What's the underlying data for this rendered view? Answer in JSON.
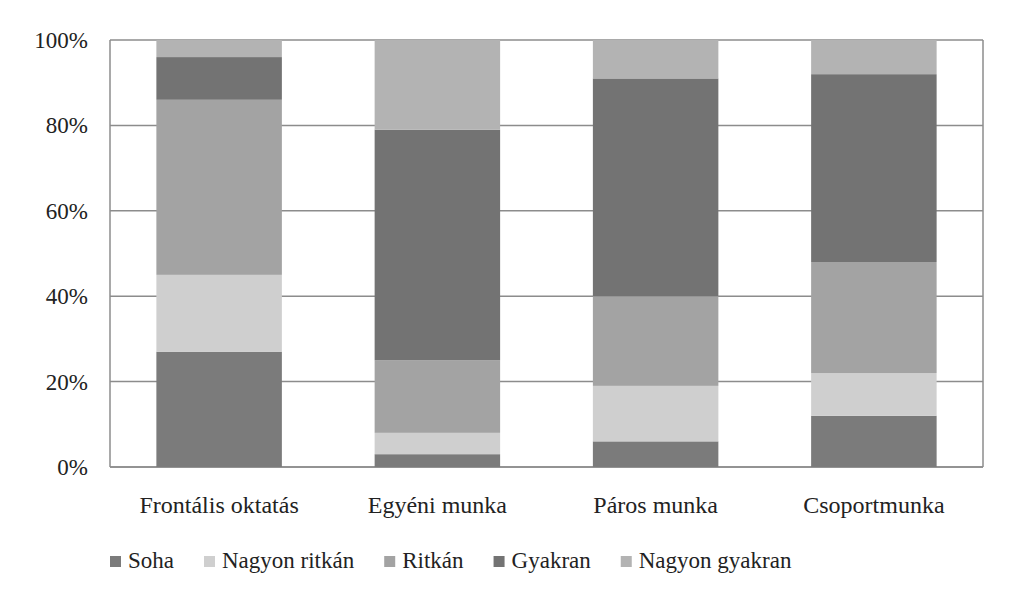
{
  "chart_data": {
    "type": "bar",
    "stacked": true,
    "grid": true,
    "legend": "bottom",
    "categories": [
      "Frontális oktatás",
      "Egyéni munka",
      "Páros munka",
      "Csoportmunka"
    ],
    "series": [
      {
        "name": "Soha",
        "color": "#7b7b7b",
        "values": [
          27,
          3,
          6,
          12
        ]
      },
      {
        "name": "Nagyon ritkán",
        "color": "#cfcfcf",
        "values": [
          18,
          5,
          13,
          10
        ]
      },
      {
        "name": "Ritkán",
        "color": "#a3a3a3",
        "values": [
          41,
          17,
          21,
          26
        ]
      },
      {
        "name": "Gyakran",
        "color": "#737373",
        "values": [
          10,
          54,
          51,
          44
        ]
      },
      {
        "name": "Nagyon gyakran",
        "color": "#b3b3b3",
        "values": [
          4,
          21,
          9,
          8
        ]
      }
    ],
    "ylim": [
      0,
      100
    ],
    "yticks": [
      {
        "value": 0,
        "label": "0%"
      },
      {
        "value": 20,
        "label": "20%"
      },
      {
        "value": 40,
        "label": "40%"
      },
      {
        "value": 60,
        "label": "60%"
      },
      {
        "value": 80,
        "label": "80%"
      },
      {
        "value": 100,
        "label": "100%"
      }
    ]
  }
}
